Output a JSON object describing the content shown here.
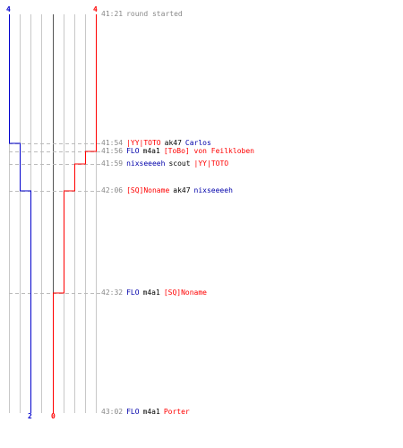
{
  "colors": {
    "team_a": "#0000cc",
    "team_b": "#ff0000",
    "grid": "#c8c8c8",
    "center": "#555555",
    "time": "#888888"
  },
  "team_a": {
    "start_count": "4",
    "end_count": "2"
  },
  "team_b": {
    "start_count": "4",
    "end_count": "0"
  },
  "events": [
    {
      "time": "41:21",
      "parts": [
        {
          "text": "round started",
          "team": "gray"
        }
      ]
    },
    {
      "time": "41:54",
      "parts": [
        {
          "text": "|YY|TOTO",
          "team": "red"
        },
        {
          "text": "ak47",
          "team": "black"
        },
        {
          "text": "Carlos",
          "team": "blue"
        }
      ]
    },
    {
      "time": "41:56",
      "parts": [
        {
          "text": "FLO",
          "team": "blue"
        },
        {
          "text": "m4a1",
          "team": "black"
        },
        {
          "text": "[ToBo] von Feilkloben",
          "team": "red"
        }
      ]
    },
    {
      "time": "41:59",
      "parts": [
        {
          "text": "nixseeeeh",
          "team": "blue"
        },
        {
          "text": "scout",
          "team": "black"
        },
        {
          "text": "|YY|TOTO",
          "team": "red"
        }
      ]
    },
    {
      "time": "42:06",
      "parts": [
        {
          "text": "[SQ]Noname",
          "team": "red"
        },
        {
          "text": "ak47",
          "team": "black"
        },
        {
          "text": "nixseeeeh",
          "team": "blue"
        }
      ]
    },
    {
      "time": "42:32",
      "parts": [
        {
          "text": "FLO",
          "team": "blue"
        },
        {
          "text": "m4a1",
          "team": "black"
        },
        {
          "text": "[SQ]Noname",
          "team": "red"
        }
      ]
    },
    {
      "time": "43:02",
      "parts": [
        {
          "text": "FLO",
          "team": "blue"
        },
        {
          "text": "m4a1",
          "team": "black"
        },
        {
          "text": "Porter",
          "team": "red"
        }
      ]
    }
  ]
}
